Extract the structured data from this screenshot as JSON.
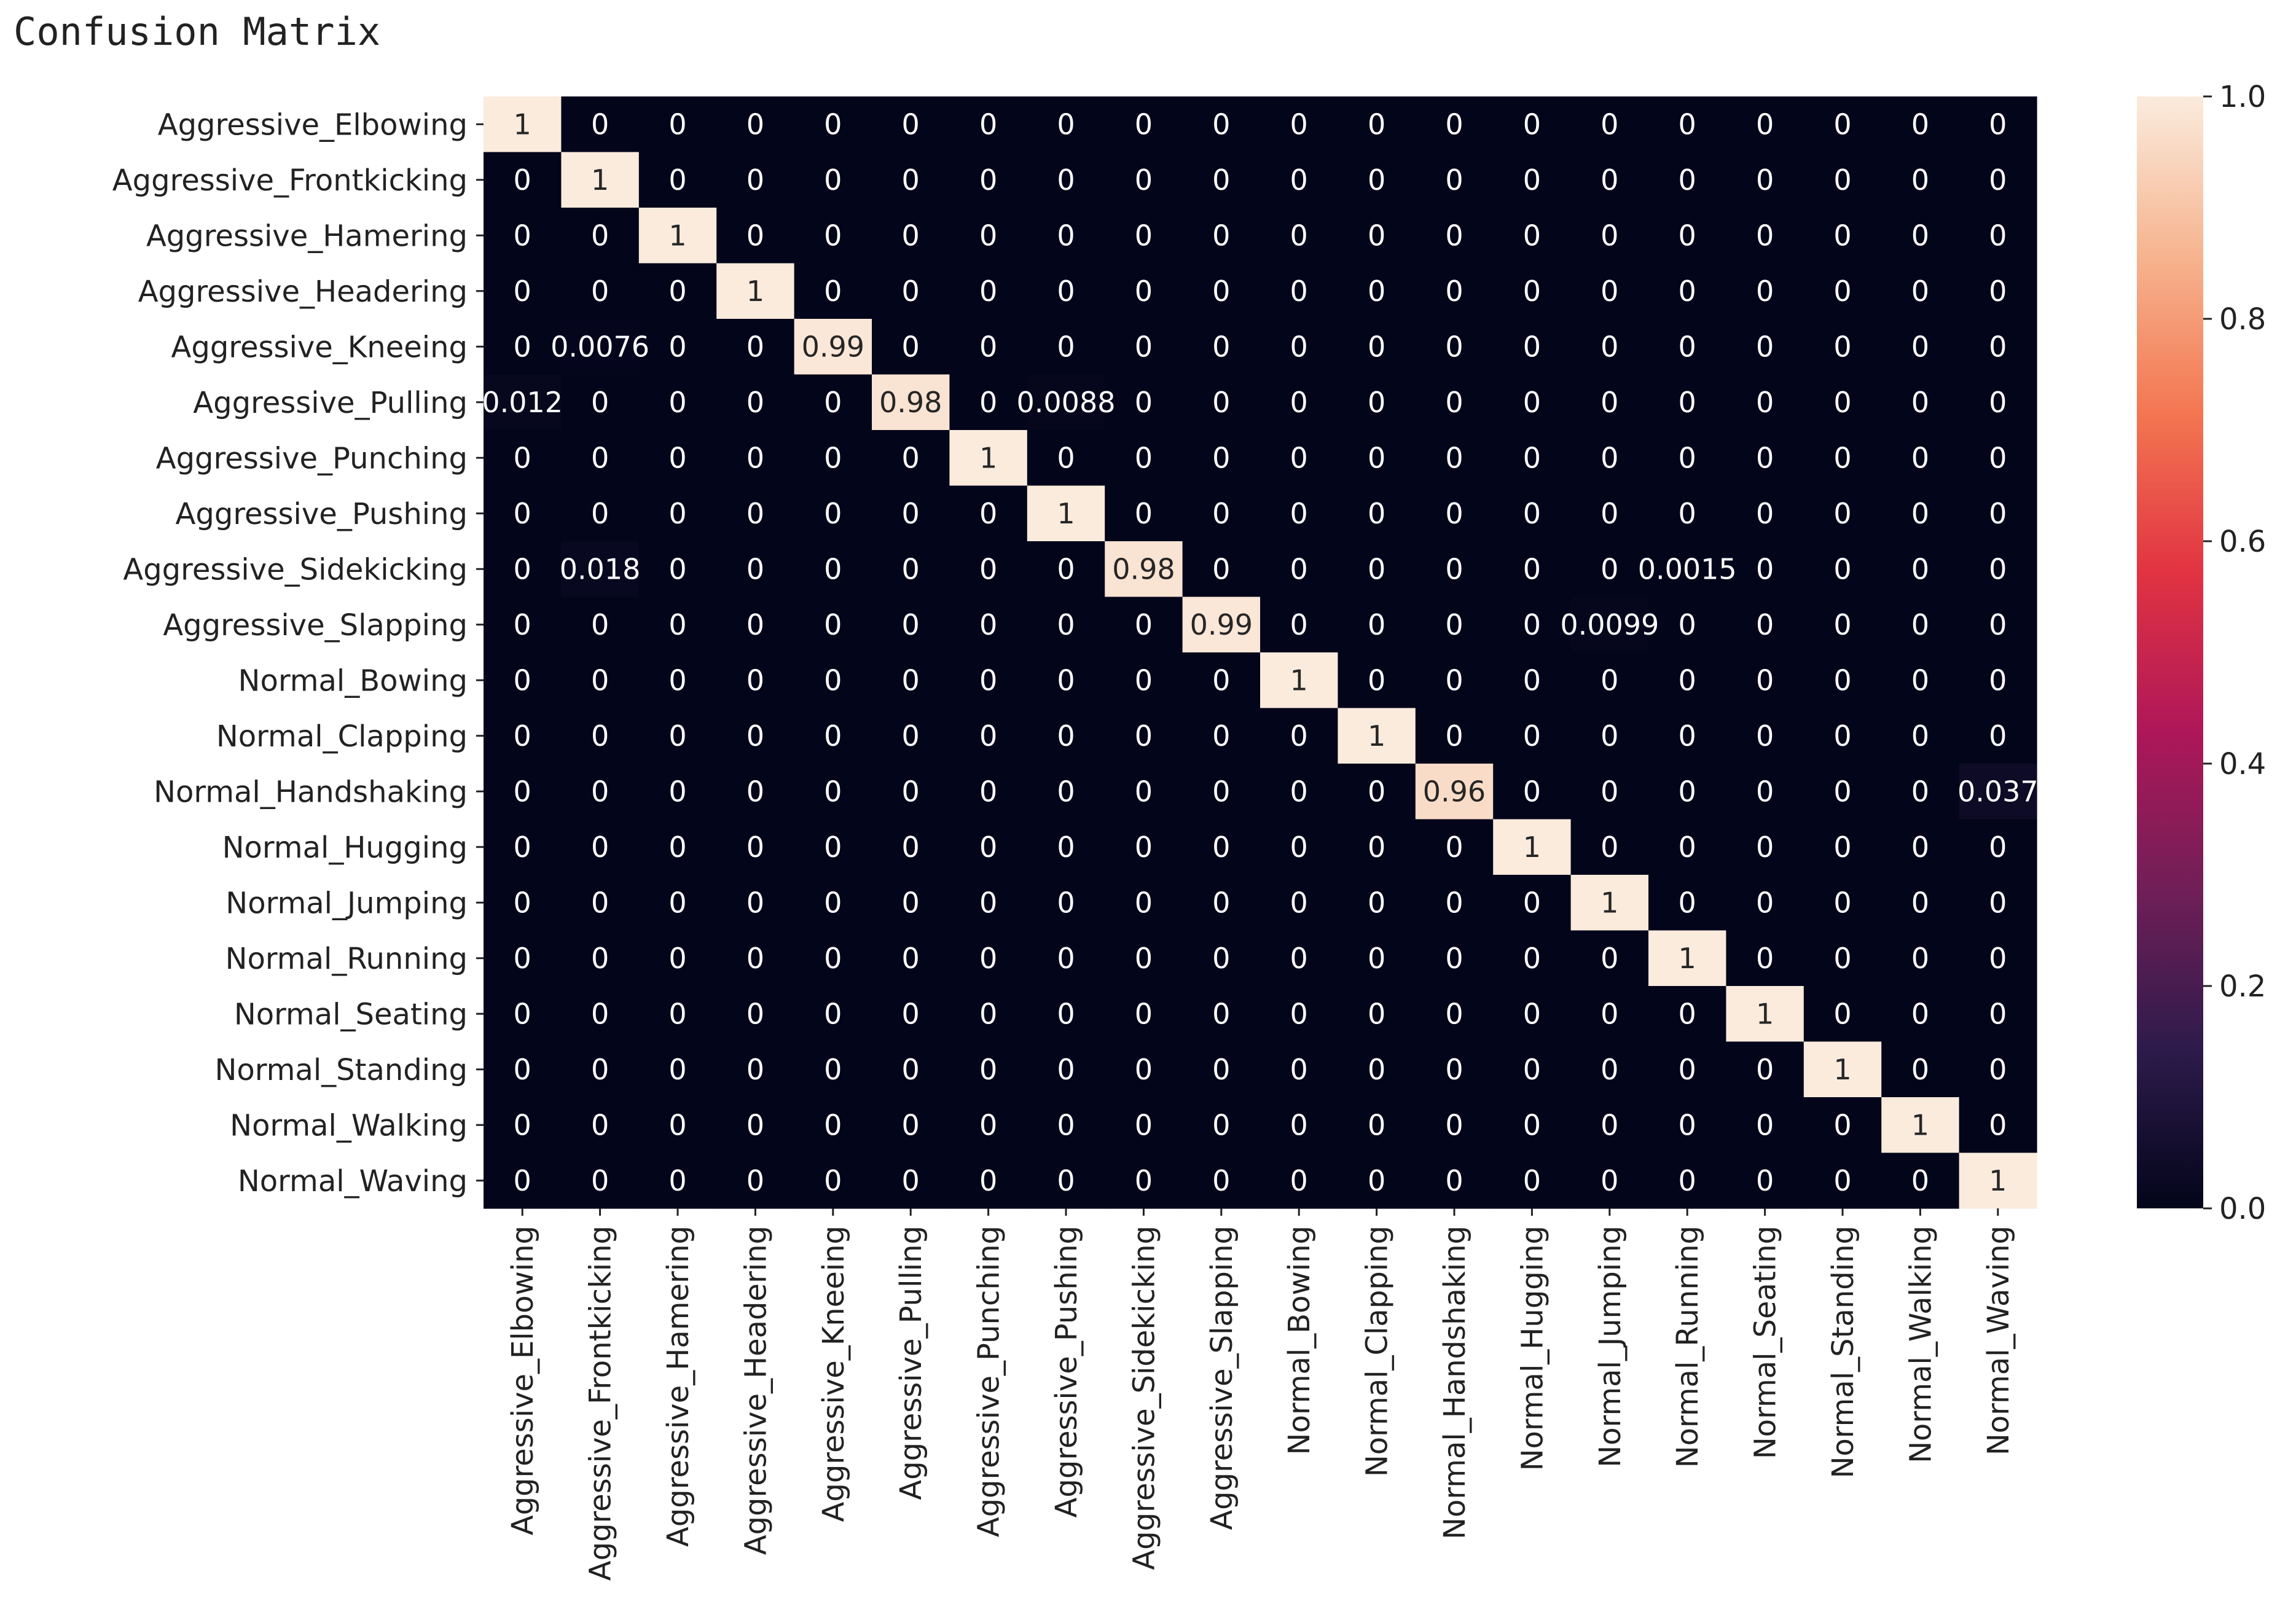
{
  "chart_data": {
    "type": "heatmap",
    "title": "Confusion Matrix",
    "xlabel": "",
    "ylabel": "",
    "labels": [
      "Aggressive_Elbowing",
      "Aggressive_Frontkicking",
      "Aggressive_Hamering",
      "Aggressive_Headering",
      "Aggressive_Kneeing",
      "Aggressive_Pulling",
      "Aggressive_Punching",
      "Aggressive_Pushing",
      "Aggressive_Sidekicking",
      "Aggressive_Slapping",
      "Normal_Bowing",
      "Normal_Clapping",
      "Normal_Handshaking",
      "Normal_Hugging",
      "Normal_Jumping",
      "Normal_Running",
      "Normal_Seating",
      "Normal_Standing",
      "Normal_Walking",
      "Normal_Waving"
    ],
    "matrix": [
      [
        1,
        0,
        0,
        0,
        0,
        0,
        0,
        0,
        0,
        0,
        0,
        0,
        0,
        0,
        0,
        0,
        0,
        0,
        0,
        0
      ],
      [
        0,
        1,
        0,
        0,
        0,
        0,
        0,
        0,
        0,
        0,
        0,
        0,
        0,
        0,
        0,
        0,
        0,
        0,
        0,
        0
      ],
      [
        0,
        0,
        1,
        0,
        0,
        0,
        0,
        0,
        0,
        0,
        0,
        0,
        0,
        0,
        0,
        0,
        0,
        0,
        0,
        0
      ],
      [
        0,
        0,
        0,
        1,
        0,
        0,
        0,
        0,
        0,
        0,
        0,
        0,
        0,
        0,
        0,
        0,
        0,
        0,
        0,
        0
      ],
      [
        0,
        0.0076,
        0,
        0,
        0.99,
        0,
        0,
        0,
        0,
        0,
        0,
        0,
        0,
        0,
        0,
        0,
        0,
        0,
        0,
        0
      ],
      [
        0.012,
        0,
        0,
        0,
        0,
        0.98,
        0,
        0.0088,
        0,
        0,
        0,
        0,
        0,
        0,
        0,
        0,
        0,
        0,
        0,
        0
      ],
      [
        0,
        0,
        0,
        0,
        0,
        0,
        1,
        0,
        0,
        0,
        0,
        0,
        0,
        0,
        0,
        0,
        0,
        0,
        0,
        0
      ],
      [
        0,
        0,
        0,
        0,
        0,
        0,
        0,
        1,
        0,
        0,
        0,
        0,
        0,
        0,
        0,
        0,
        0,
        0,
        0,
        0
      ],
      [
        0,
        0.018,
        0,
        0,
        0,
        0,
        0,
        0,
        0.98,
        0,
        0,
        0,
        0,
        0,
        0,
        0.0015,
        0,
        0,
        0,
        0
      ],
      [
        0,
        0,
        0,
        0,
        0,
        0,
        0,
        0,
        0,
        0.99,
        0,
        0,
        0,
        0,
        0.0099,
        0,
        0,
        0,
        0,
        0
      ],
      [
        0,
        0,
        0,
        0,
        0,
        0,
        0,
        0,
        0,
        0,
        1,
        0,
        0,
        0,
        0,
        0,
        0,
        0,
        0,
        0
      ],
      [
        0,
        0,
        0,
        0,
        0,
        0,
        0,
        0,
        0,
        0,
        0,
        1,
        0,
        0,
        0,
        0,
        0,
        0,
        0,
        0
      ],
      [
        0,
        0,
        0,
        0,
        0,
        0,
        0,
        0,
        0,
        0,
        0,
        0,
        0.96,
        0,
        0,
        0,
        0,
        0,
        0,
        0.037
      ],
      [
        0,
        0,
        0,
        0,
        0,
        0,
        0,
        0,
        0,
        0,
        0,
        0,
        0,
        1,
        0,
        0,
        0,
        0,
        0,
        0
      ],
      [
        0,
        0,
        0,
        0,
        0,
        0,
        0,
        0,
        0,
        0,
        0,
        0,
        0,
        0,
        1,
        0,
        0,
        0,
        0,
        0
      ],
      [
        0,
        0,
        0,
        0,
        0,
        0,
        0,
        0,
        0,
        0,
        0,
        0,
        0,
        0,
        0,
        1,
        0,
        0,
        0,
        0
      ],
      [
        0,
        0,
        0,
        0,
        0,
        0,
        0,
        0,
        0,
        0,
        0,
        0,
        0,
        0,
        0,
        0,
        1,
        0,
        0,
        0
      ],
      [
        0,
        0,
        0,
        0,
        0,
        0,
        0,
        0,
        0,
        0,
        0,
        0,
        0,
        0,
        0,
        0,
        0,
        1,
        0,
        0
      ],
      [
        0,
        0,
        0,
        0,
        0,
        0,
        0,
        0,
        0,
        0,
        0,
        0,
        0,
        0,
        0,
        0,
        0,
        0,
        1,
        0
      ],
      [
        0,
        0,
        0,
        0,
        0,
        0,
        0,
        0,
        0,
        0,
        0,
        0,
        0,
        0,
        0,
        0,
        0,
        0,
        0,
        1
      ]
    ],
    "colorbar": {
      "min": 0.0,
      "max": 1.0,
      "ticks": [
        "0.0",
        "0.2",
        "0.4",
        "0.6",
        "0.8",
        "1.0"
      ],
      "tick_values": [
        0.0,
        0.2,
        0.4,
        0.6,
        0.8,
        1.0
      ],
      "colormap": "rocket",
      "colors": [
        "#03051a",
        "#2d1b4b",
        "#701f57",
        "#ae1759",
        "#e13342",
        "#f37651",
        "#f6b48f",
        "#faebdd"
      ]
    },
    "grid": false,
    "legend": "colorbar-right"
  }
}
